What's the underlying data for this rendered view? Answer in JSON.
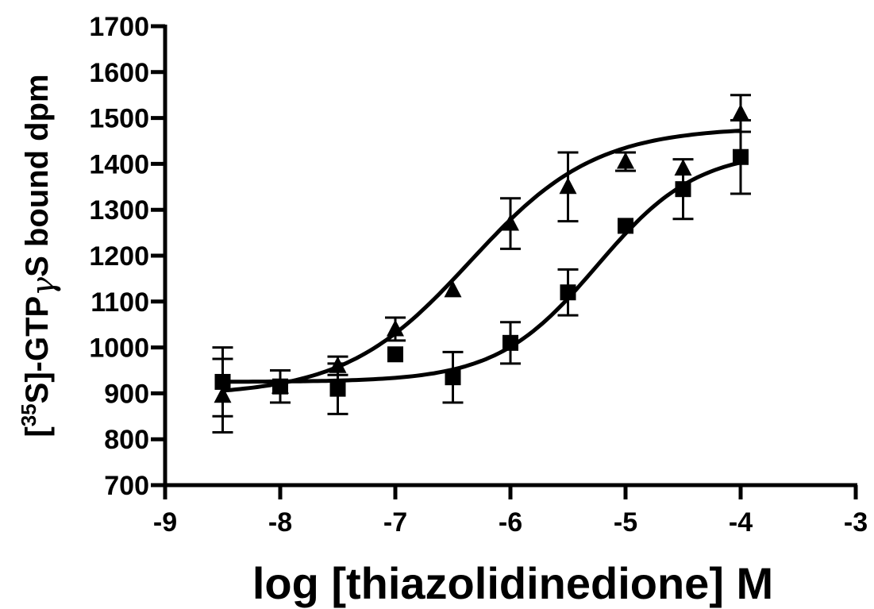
{
  "chart_data": {
    "type": "scatter",
    "xlabel": "log [thiazolidinedione] M",
    "ylabel": {
      "prefix": "[",
      "superscript": "35",
      "middle": "S]-GTP",
      "gamma": "γ",
      "suffix": "S bound dpm"
    },
    "xlim": [
      -9,
      -3
    ],
    "ylim": [
      700,
      1700
    ],
    "xticks": [
      -9,
      -8,
      -7,
      -6,
      -5,
      -4,
      -3
    ],
    "yticks": [
      700,
      800,
      900,
      1000,
      1100,
      1200,
      1300,
      1400,
      1500,
      1600,
      1700
    ],
    "grid": false,
    "legend": "none",
    "series": [
      {
        "marker": "triangle",
        "x": [
          -8.5,
          -8,
          -7.5,
          -7,
          -6.5,
          -6,
          -5.5,
          -5,
          -4.5,
          -4
        ],
        "y": [
          895,
          915,
          960,
          1040,
          1125,
          1270,
          1350,
          1405,
          1390,
          1510
        ],
        "err": [
          80,
          35,
          20,
          25,
          0,
          55,
          75,
          20,
          0,
          40
        ],
        "fit": {
          "bottom": 895,
          "top": 1480,
          "logEC50": -6.35,
          "hill": 0.8
        }
      },
      {
        "marker": "square",
        "x": [
          -8.5,
          -8,
          -7.5,
          -7,
          -6.5,
          -6,
          -5.5,
          -5,
          -4.5,
          -4
        ],
        "y": [
          925,
          915,
          910,
          985,
          935,
          1010,
          1120,
          1265,
          1345,
          1415
        ],
        "err": [
          75,
          35,
          55,
          0,
          55,
          45,
          50,
          0,
          65,
          80
        ],
        "fit": {
          "bottom": 925,
          "top": 1430,
          "logEC50": -5.25,
          "hill": 1.0
        }
      }
    ]
  }
}
